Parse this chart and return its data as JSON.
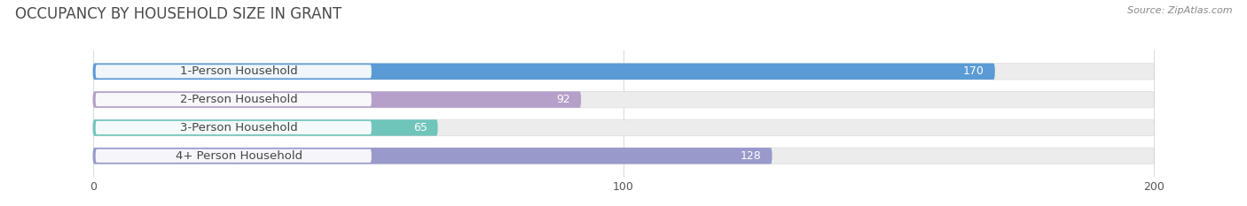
{
  "title": "OCCUPANCY BY HOUSEHOLD SIZE IN GRANT",
  "source": "Source: ZipAtlas.com",
  "categories": [
    "1-Person Household",
    "2-Person Household",
    "3-Person Household",
    "4+ Person Household"
  ],
  "values": [
    170,
    92,
    65,
    128
  ],
  "bar_colors": [
    "#5b9bd5",
    "#b4a0c8",
    "#70c5bb",
    "#9999cc"
  ],
  "xlim": [
    -15,
    215
  ],
  "data_max": 200,
  "xticks": [
    0,
    100,
    200
  ],
  "title_fontsize": 12,
  "label_fontsize": 9.5,
  "value_fontsize": 9,
  "bar_height": 0.58,
  "background_color": "#ffffff",
  "track_color": "#ececec",
  "label_box_color": "#ffffff",
  "value_text_color": "#ffffff",
  "label_text_color": "#444444",
  "title_color": "#4a4a4a",
  "source_color": "#888888"
}
